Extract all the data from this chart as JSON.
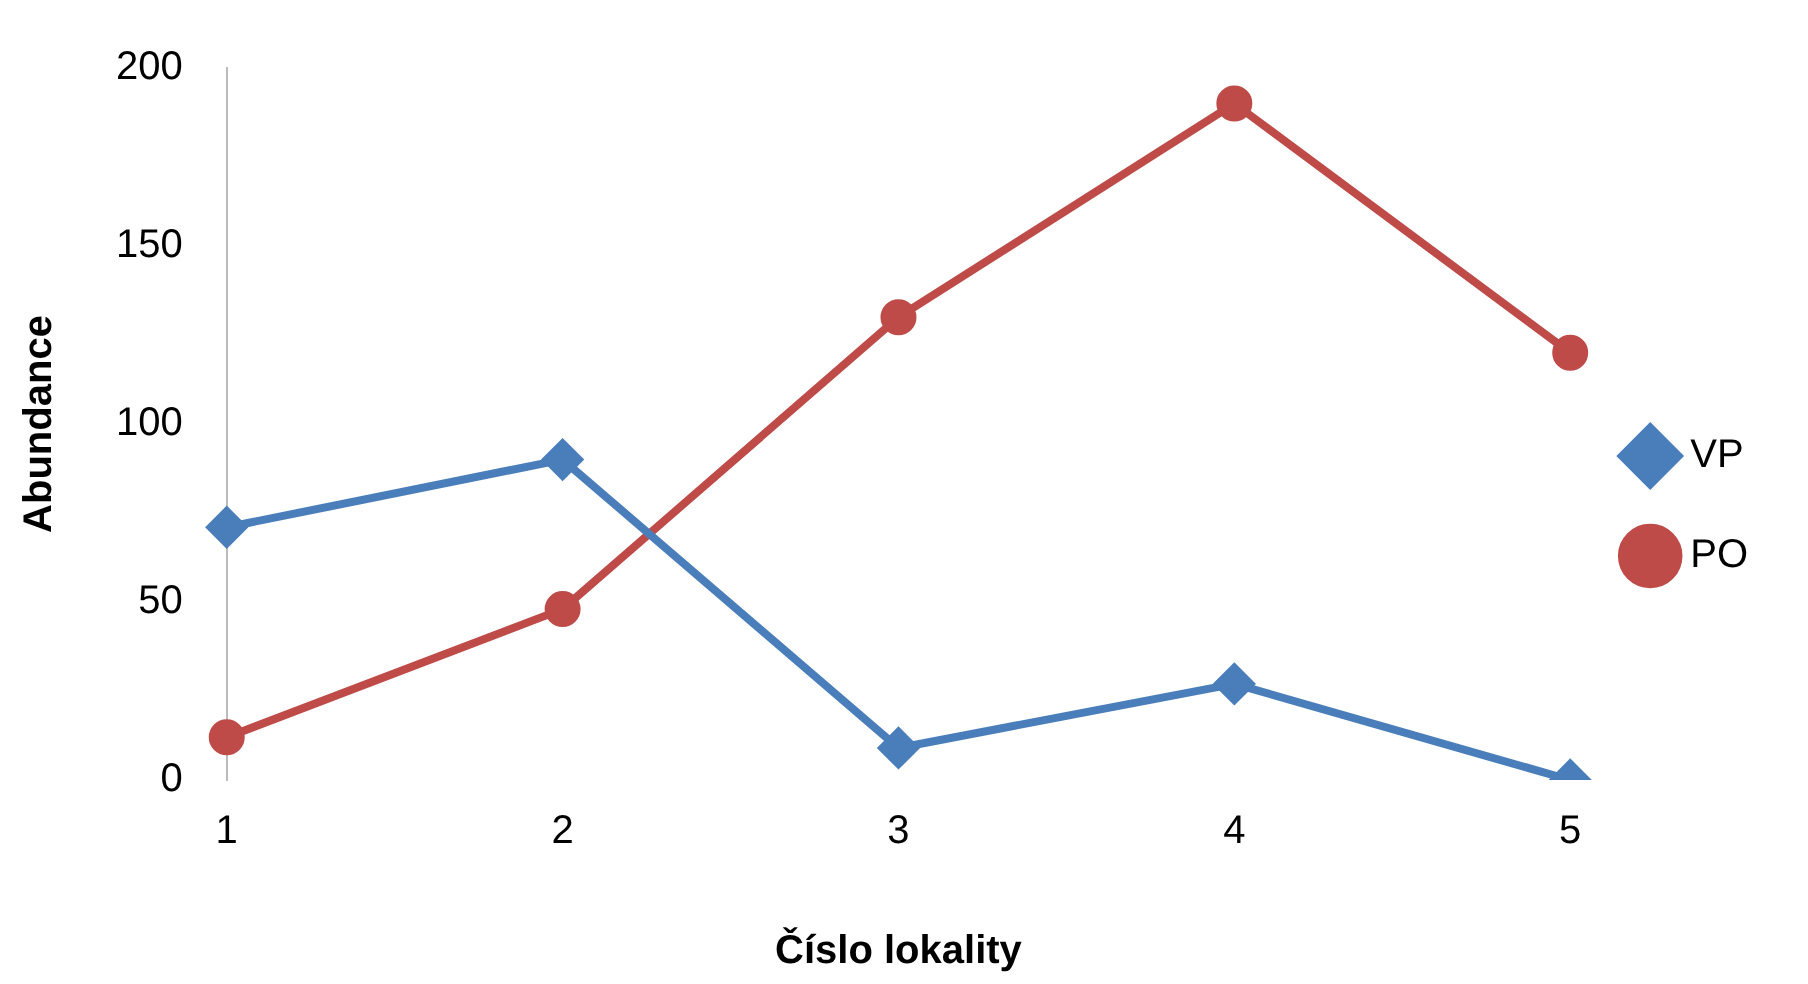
{
  "chart_data": {
    "type": "line",
    "xlabel": "Číslo lokality",
    "ylabel": "Abundance",
    "categories": [
      "1",
      "2",
      "3",
      "4",
      "5"
    ],
    "series": [
      {
        "name": "VP",
        "color": "#4a7ebb",
        "marker": "diamond",
        "values": [
          71,
          90,
          9,
          27,
          0
        ]
      },
      {
        "name": "PO",
        "color": "#be4b48",
        "marker": "circle",
        "values": [
          12,
          48,
          130,
          190,
          120
        ]
      }
    ],
    "ylim": [
      0,
      200
    ],
    "yticks": [
      0,
      50,
      100,
      150,
      200
    ],
    "grid": false,
    "legend": "right",
    "line_style": "solid"
  }
}
